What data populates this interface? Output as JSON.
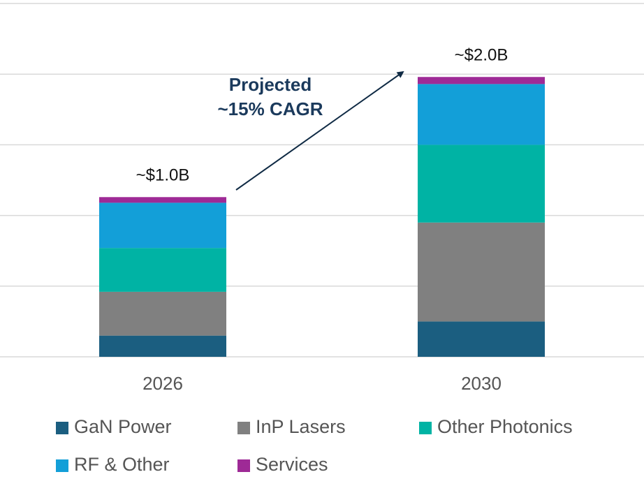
{
  "chart_data": {
    "type": "stacked_bar",
    "categories": [
      "2026",
      "2030"
    ],
    "series": [
      {
        "name": "GaN Power",
        "color": "#1b5e80",
        "values": [
          0.15,
          0.25
        ]
      },
      {
        "name": "InP Lasers",
        "color": "#808080",
        "values": [
          0.31,
          0.7
        ]
      },
      {
        "name": "Other Photonics",
        "color": "#00b3a4",
        "values": [
          0.31,
          0.55
        ]
      },
      {
        "name": "RF & Other",
        "color": "#139fd8",
        "values": [
          0.32,
          0.43
        ]
      },
      {
        "name": "Services",
        "color": "#9e2a96",
        "values": [
          0.04,
          0.05
        ]
      }
    ],
    "total_labels": [
      "~$1.0B",
      "~$2.0B"
    ],
    "annotation": [
      "Projected",
      "~15% CAGR"
    ],
    "ylim": [
      0,
      2.5
    ],
    "yticks": [
      0,
      0.5,
      1,
      1.5,
      2,
      2.5
    ],
    "grid": true,
    "legend": "bottom"
  }
}
